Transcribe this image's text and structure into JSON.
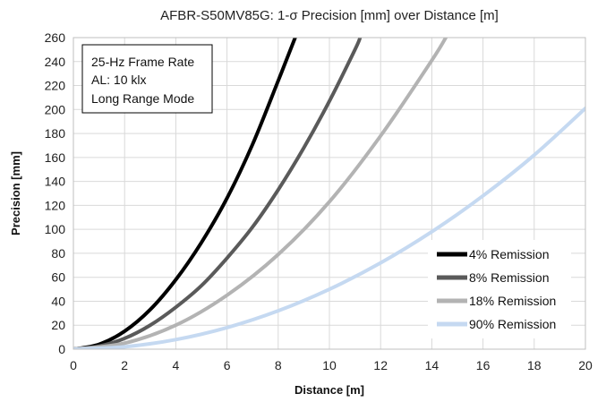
{
  "chart_data": {
    "type": "line",
    "title": "AFBR-S50MV85G: 1-σ Precision [mm] over Distance [m]",
    "xlabel": "Distance [m]",
    "ylabel": "Precision [mm]",
    "xlim": [
      0,
      20
    ],
    "ylim": [
      0,
      260
    ],
    "x_ticks": [
      "0",
      "2",
      "4",
      "6",
      "8",
      "10",
      "12",
      "14",
      "16",
      "18",
      "20"
    ],
    "y_ticks": [
      "0",
      "20",
      "40",
      "60",
      "80",
      "100",
      "120",
      "140",
      "160",
      "180",
      "200",
      "220",
      "240",
      "260"
    ],
    "grid": true,
    "legend_position": "bottom-right",
    "annotation_lines": [
      "25-Hz Frame Rate",
      "AL: 10 klx",
      "Long Range Mode"
    ],
    "series": [
      {
        "name": "4% Remission",
        "color": "#000000",
        "x": [
          0,
          1,
          2,
          3,
          4,
          5,
          6,
          7,
          8,
          8.7
        ],
        "y": [
          0,
          4,
          15,
          33,
          58,
          89,
          126,
          171,
          224,
          262
        ]
      },
      {
        "name": "8% Remission",
        "color": "#5a5a5a",
        "x": [
          0,
          1,
          2,
          3,
          4,
          5,
          6,
          7,
          8,
          9,
          10,
          11,
          11.2
        ],
        "y": [
          0,
          2.5,
          9,
          20,
          35,
          53,
          76,
          102,
          133,
          168,
          207,
          250,
          260
        ]
      },
      {
        "name": "18% Remission",
        "color": "#b3b3b3",
        "x": [
          0,
          2,
          4,
          6,
          8,
          10,
          12,
          14,
          14.6
        ],
        "y": [
          0,
          5,
          20,
          45,
          79,
          123,
          178,
          241,
          262
        ]
      },
      {
        "name": "90% Remission",
        "color": "#c5d9f1",
        "x": [
          0,
          2,
          4,
          6,
          8,
          10,
          12,
          14,
          16,
          18,
          20
        ],
        "y": [
          0,
          2,
          8,
          18,
          32,
          50,
          72,
          98,
          128,
          162,
          201
        ]
      }
    ]
  }
}
